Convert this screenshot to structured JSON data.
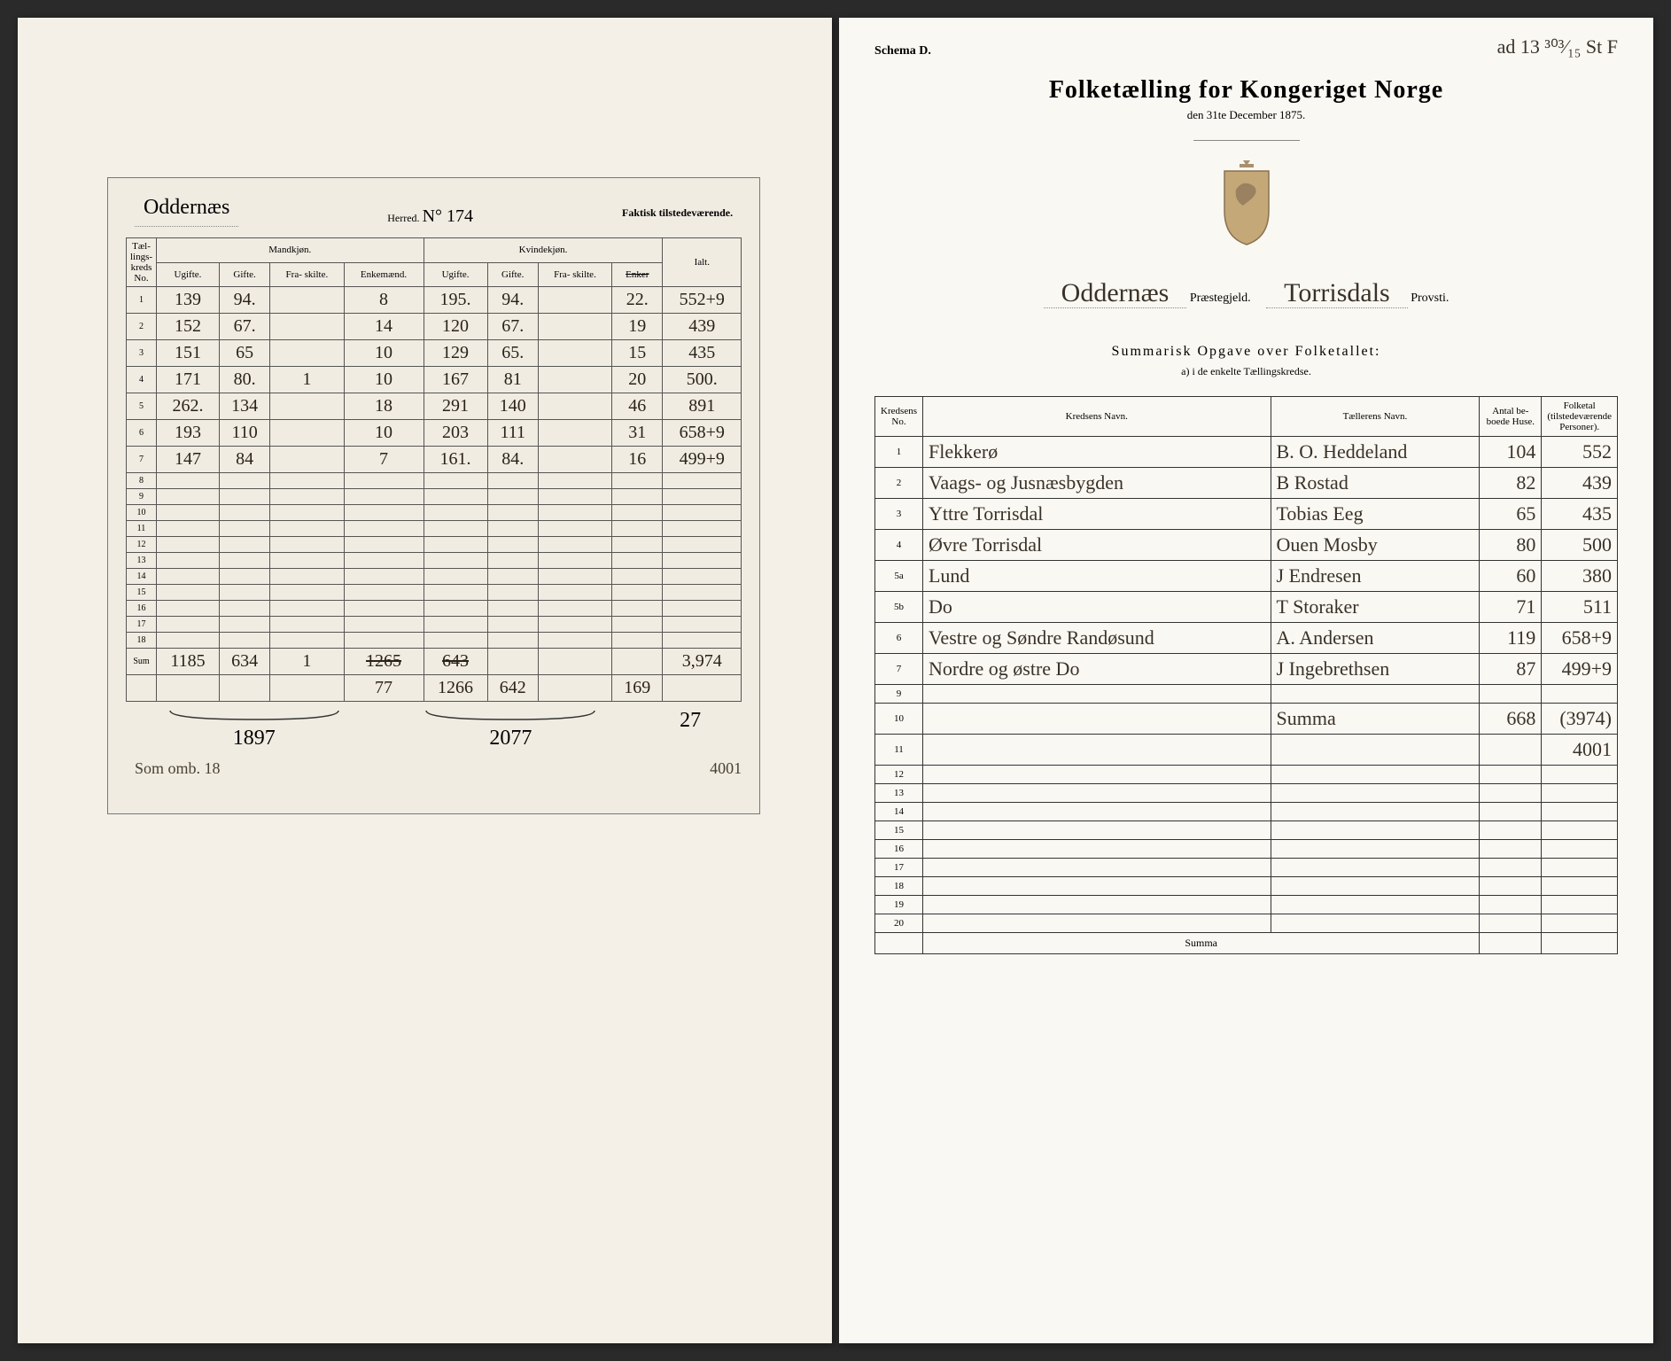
{
  "left": {
    "herred_name": "Oddernæs",
    "herred_label": "Herred.",
    "nummer": "N° 174",
    "faktisk_label": "Faktisk tilstedeværende.",
    "group_headers": {
      "no": "Tæl-\nlings-\nkreds\nNo.",
      "m": "Mandkjøn.",
      "k": "Kvindekjøn.",
      "ialt": "Ialt."
    },
    "sub_headers": [
      "Ugifte.",
      "Gifte.",
      "Fra-\nskilte.",
      "Enkemænd.",
      "Ugifte.",
      "Gifte.",
      "Fra-\nskilte.",
      "Enker"
    ],
    "rows": [
      {
        "no": "1",
        "m_u": "139",
        "m_g": "94.",
        "m_f": "",
        "m_e": "8",
        "k_u": "195.",
        "k_g": "94.",
        "k_f": "",
        "k_e": "22.",
        "ialt": "552+9"
      },
      {
        "no": "2",
        "m_u": "152",
        "m_g": "67.",
        "m_f": "",
        "m_e": "14",
        "k_u": "120",
        "k_g": "67.",
        "k_f": "",
        "k_e": "19",
        "ialt": "439"
      },
      {
        "no": "3",
        "m_u": "151",
        "m_g": "65",
        "m_f": "",
        "m_e": "10",
        "k_u": "129",
        "k_g": "65.",
        "k_f": "",
        "k_e": "15",
        "ialt": "435"
      },
      {
        "no": "4",
        "m_u": "171",
        "m_g": "80.",
        "m_f": "1",
        "m_e": "10",
        "k_u": "167",
        "k_g": "81",
        "k_f": "",
        "k_e": "20",
        "ialt": "500."
      },
      {
        "no": "5",
        "m_u": "262.",
        "m_g": "134",
        "m_f": "",
        "m_e": "18",
        "k_u": "291",
        "k_g": "140",
        "k_f": "",
        "k_e": "46",
        "ialt": "891"
      },
      {
        "no": "6",
        "m_u": "193",
        "m_g": "110",
        "m_f": "",
        "m_e": "10",
        "k_u": "203",
        "k_g": "111",
        "k_f": "",
        "k_e": "31",
        "ialt": "658+9"
      },
      {
        "no": "7",
        "m_u": "147",
        "m_g": "84",
        "m_f": "",
        "m_e": "7",
        "k_u": "161.",
        "k_g": "84.",
        "k_f": "",
        "k_e": "16",
        "ialt": "499+9"
      },
      {
        "no": "8"
      },
      {
        "no": "9"
      },
      {
        "no": "10"
      },
      {
        "no": "11"
      },
      {
        "no": "12"
      },
      {
        "no": "13"
      },
      {
        "no": "14"
      },
      {
        "no": "15"
      },
      {
        "no": "16"
      },
      {
        "no": "17"
      },
      {
        "no": "18"
      }
    ],
    "sum_label": "Sum",
    "sum": {
      "m_u": "1185",
      "m_g": "634",
      "m_f": "1",
      "m_e": "1265",
      "k_u": "643",
      "k_g": "",
      "k_f": "",
      "k_e": "",
      "ialt": "3,974"
    },
    "sum2": {
      "m_e": "77",
      "k_u": "1266",
      "k_g": "642",
      "k_e": "169"
    },
    "brace_left": "1897",
    "brace_right": "2077",
    "brace_side": "27",
    "foot": "Som omb.   18",
    "foot_right": "4001"
  },
  "right": {
    "schema": "Schema D.",
    "corner": "ad 13 ³⁰³⁄₁₅ St F",
    "title": "Folketælling for Kongeriget Norge",
    "subtitle": "den 31te December 1875.",
    "parish": "Oddernæs",
    "parish_label": "Præstegjeld.",
    "provsti": "Torrisdals",
    "provsti_label": "Provsti.",
    "summary_title": "Summarisk Opgave over Folketallet:",
    "summary_sub": "a) i de enkelte Tællingskredse.",
    "headers": {
      "no": "Kredsens\nNo.",
      "navn": "Kredsens Navn.",
      "taeller": "Tællerens Navn.",
      "huse": "Antal be-\nboede Huse.",
      "folketal": "Folketal\n(tilstedeværende\nPersoner)."
    },
    "rows": [
      {
        "no": "1",
        "navn": "Flekkerø",
        "taeller": "B. O. Heddeland",
        "huse": "104",
        "folk": "552"
      },
      {
        "no": "2",
        "navn": "Vaags- og Jusnæsbygden",
        "taeller": "B Rostad",
        "huse": "82",
        "folk": "439"
      },
      {
        "no": "3",
        "navn": "Yttre Torrisdal",
        "taeller": "Tobias Eeg",
        "huse": "65",
        "folk": "435"
      },
      {
        "no": "4",
        "navn": "Øvre Torrisdal",
        "taeller": "Ouen Mosby",
        "huse": "80",
        "folk": "500"
      },
      {
        "no": "5a",
        "navn": "Lund",
        "taeller": "J Endresen",
        "huse": "60",
        "folk": "380"
      },
      {
        "no": "5b",
        "navn": "Do",
        "taeller": "T Storaker",
        "huse": "71",
        "folk": "511"
      },
      {
        "no": "6",
        "navn": "Vestre og Søndre Randøsund",
        "taeller": "A. Andersen",
        "huse": "119",
        "folk": "658+9"
      },
      {
        "no": "7",
        "navn": "Nordre og østre    Do",
        "taeller": "J Ingebrethsen",
        "huse": "87",
        "folk": "499+9"
      },
      {
        "no": "9"
      },
      {
        "no": "10",
        "navn": "",
        "taeller": "Summa",
        "huse": "668",
        "folk": "(3974)"
      },
      {
        "no": "11",
        "folk": "4001"
      },
      {
        "no": "12"
      },
      {
        "no": "13"
      },
      {
        "no": "14"
      },
      {
        "no": "15"
      },
      {
        "no": "16"
      },
      {
        "no": "17"
      },
      {
        "no": "18"
      },
      {
        "no": "19"
      },
      {
        "no": "20"
      }
    ],
    "summa_label": "Summa"
  },
  "colors": {
    "paper": "#f4f0e8",
    "paper_right": "#faf8f2",
    "ink": "#2a2218",
    "cursive": "#3a3228",
    "border": "#333333"
  }
}
